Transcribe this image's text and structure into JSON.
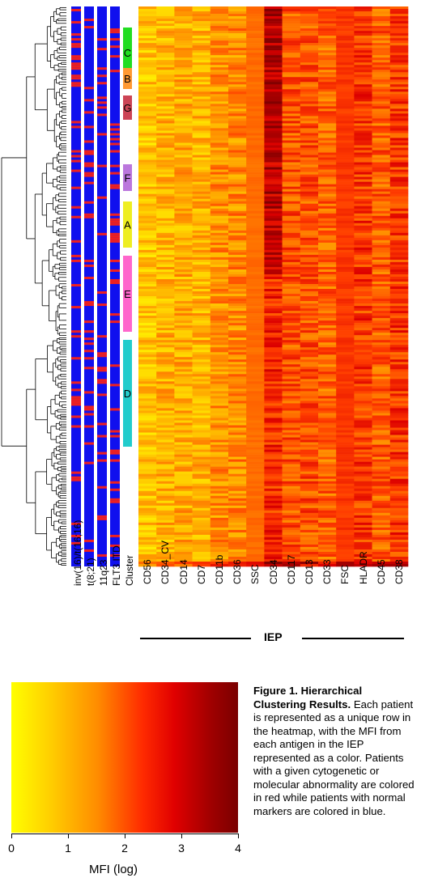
{
  "figure": {
    "heatmap_columns": [
      "CD56",
      "CD34_CV",
      "CD14",
      "CD7",
      "CD11b",
      "CD36",
      "SSC",
      "CD34",
      "CD117",
      "CD13",
      "CD33",
      "FSC",
      "HLADR",
      "CD45",
      "CD38"
    ],
    "annotation_columns": [
      "inv(16)/t(16;16)",
      "t(8;21)",
      "11q23",
      "FLT3 ITD",
      "Cluster"
    ],
    "iep_label": "IEP",
    "clusters": [
      {
        "label": "C",
        "color": "#22dd22"
      },
      {
        "label": "B",
        "color": "#ff9933"
      },
      {
        "label": "G",
        "color": "#cc4455"
      },
      {
        "label": "F",
        "color": "#bb77dd"
      },
      {
        "label": "A",
        "color": "#eeee22"
      },
      {
        "label": "E",
        "color": "#ff66cc"
      },
      {
        "label": "D",
        "color": "#22cccc"
      }
    ],
    "colors": {
      "normal": "#1010ee",
      "abnormal": "#ee2020",
      "low": "#ffff00",
      "high": "#7a0000"
    }
  },
  "legend": {
    "title": "MFI (log)",
    "ticks": [
      "0",
      "1",
      "2",
      "3",
      "4"
    ]
  },
  "caption": {
    "title": "Figure 1. Hierarchical Clustering Results.",
    "text": "Each patient is represented as a unique row in the heatmap, with the MFI from each antigen in the IEP represented as a color. Patients with a given cytogenetic or molecular abnormality are colored in red while patients with normal markers are colored in blue."
  }
}
